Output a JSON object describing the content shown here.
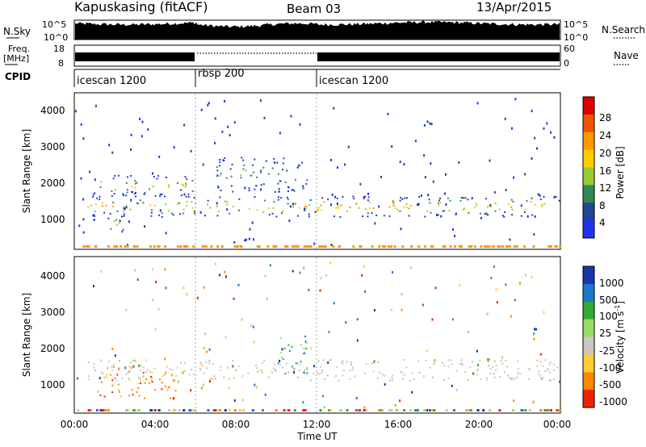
{
  "header": {
    "station": "Kapuskasing (fitACF)",
    "beam": "Beam 03",
    "date": "13/Apr/2015"
  },
  "top_panels": {
    "nsky_label": "N.Sky",
    "nsky_ticks": [
      "10^5",
      "10^0"
    ],
    "nsearch_label": "N.Search",
    "nsearch_ticks": [
      "10^5",
      "10^0"
    ],
    "freq_label_1": "Freq.",
    "freq_label_2": "[MHz]",
    "freq_ticks": [
      "18",
      "8"
    ],
    "nave_label": "Nave",
    "nave_ticks": [
      "60",
      "0"
    ],
    "cpid_label": "CPID",
    "cpid_segments": [
      {
        "label": "icescan 1200",
        "start": 0,
        "end": 6
      },
      {
        "label": "rbsp 200",
        "start": 6,
        "end": 12
      },
      {
        "label": "icescan 1200",
        "start": 12,
        "end": 24
      }
    ]
  },
  "x_axis": {
    "label": "Time UT",
    "ticks": [
      "00:00",
      "04:00",
      "08:00",
      "12:00",
      "16:00",
      "20:00",
      "00:00"
    ]
  },
  "power_panel": {
    "ylabel": "Slant Range [km]",
    "yticks": [
      "4000",
      "3000",
      "2000",
      "1000"
    ],
    "colorbar_label": "Power [dB]",
    "colorbar_ticks": [
      "28",
      "24",
      "20",
      "16",
      "12",
      "8",
      "4"
    ]
  },
  "velocity_panel": {
    "ylabel": "Slant Range [km]",
    "yticks": [
      "4000",
      "3000",
      "2000",
      "1000"
    ],
    "colorbar_label": "Velocity [m s",
    "colorbar_label_sup": "-1",
    "colorbar_label_end": "]",
    "colorbar_ticks": [
      "1000",
      "500",
      "100",
      "25",
      "-25",
      "-100",
      "-500",
      "-1000"
    ]
  },
  "chart_data": {
    "type": "heatmap",
    "x_range_hours": [
      0,
      24
    ],
    "y_range_km": [
      180,
      4600
    ],
    "power_colors": [
      "#dd0000",
      "#ee5500",
      "#ff9900",
      "#ffcc00",
      "#99cc33",
      "#338855",
      "#224499",
      "#2233ee"
    ],
    "velocity_colors": [
      "#1a33aa",
      "#1a77cc",
      "#33aa33",
      "#99dd66",
      "#c8c8c0",
      "#ffcc33",
      "#ff8800",
      "#ee2200"
    ],
    "power_features": [
      {
        "t0": 0.6,
        "t1": 24,
        "r0": 1100,
        "r1": 1700,
        "level": "strong"
      },
      {
        "t0": 0.6,
        "t1": 6,
        "r0": 1700,
        "r1": 2300,
        "level": "medium"
      },
      {
        "t0": 7,
        "t1": 11.5,
        "r0": 1800,
        "r1": 2800,
        "level": "arc"
      },
      {
        "t0": 1.2,
        "t1": 2.5,
        "r0": 650,
        "r1": 1100,
        "level": "strong"
      }
    ],
    "velocity_features": [
      {
        "t0": 0.6,
        "t1": 24,
        "r0": 1100,
        "r1": 1700,
        "class": "low"
      },
      {
        "t0": 10,
        "t1": 11.5,
        "r0": 1300,
        "r1": 2400,
        "class": "positive"
      },
      {
        "t0": 1.2,
        "t1": 5,
        "r0": 600,
        "r1": 1500,
        "class": "negative"
      }
    ]
  }
}
